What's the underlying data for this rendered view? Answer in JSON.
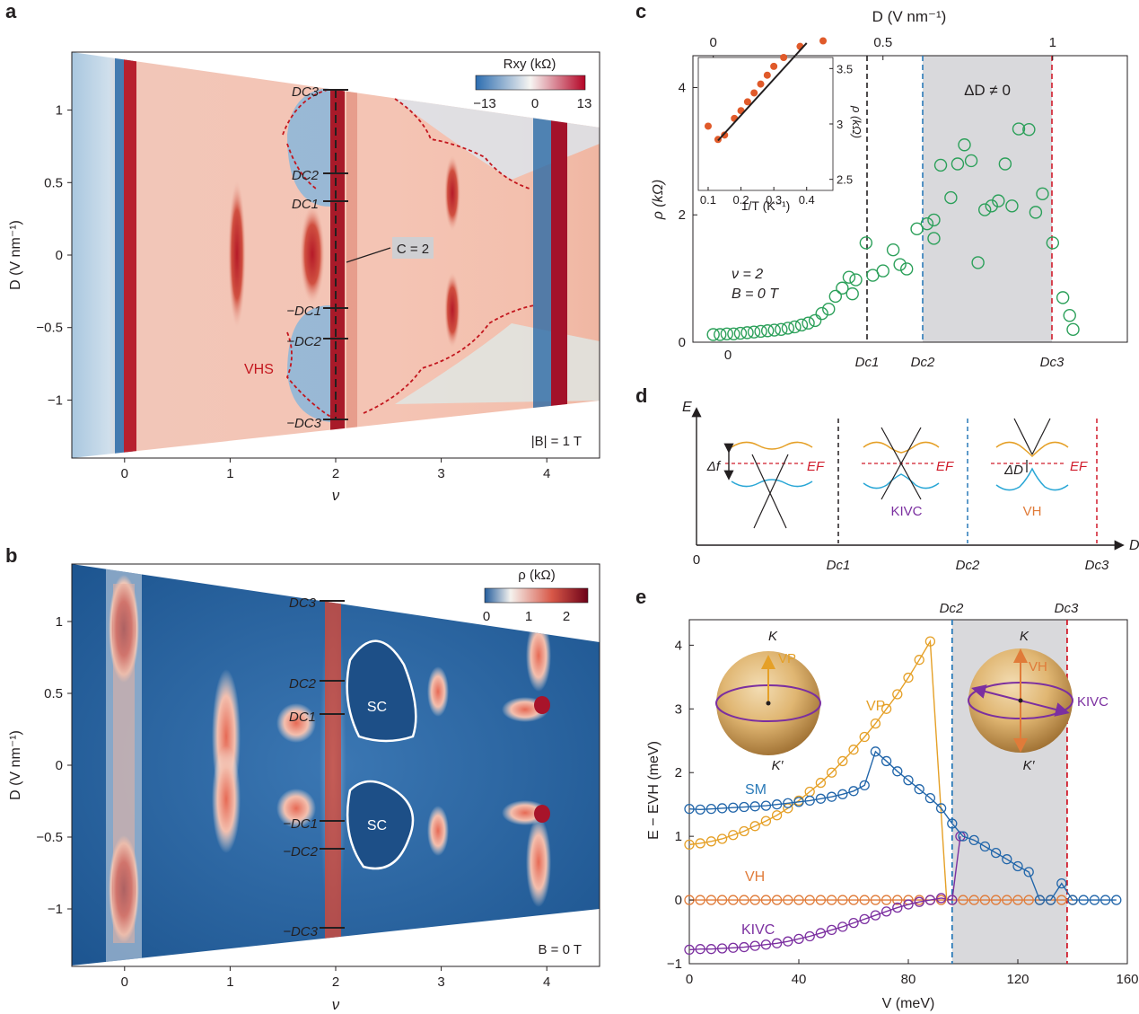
{
  "colors": {
    "red": "#b40426",
    "blue": "#2266aa",
    "orange": "#e5a027",
    "green": "#2ca05a",
    "purple": "#7b2fa0",
    "vh": "#e07b39",
    "cyan": "#2aa7d6",
    "gray": "#d9d9dc",
    "black": "#231f20"
  },
  "panels": {
    "a": "a",
    "b": "b",
    "c": "c",
    "d": "d",
    "e": "e"
  },
  "chart_data": [
    {
      "id": "a",
      "type": "heatmap",
      "xlabel": "ν",
      "ylabel": "D (V nm⁻¹)",
      "xticks": [
        "0",
        "1",
        "2",
        "3",
        "4"
      ],
      "yticks": [
        "1",
        "0.5",
        "0",
        "−0.5",
        "−1"
      ],
      "xlim": [
        -0.5,
        4.5
      ],
      "ylim": [
        -1.4,
        1.4
      ],
      "colorbar": {
        "label": "Rxy (kΩ)",
        "ticks": [
          "−13",
          "0",
          "13"
        ]
      },
      "labels": {
        "dc3": "DC3",
        "dc2": "DC2",
        "dc1": "DC1",
        "mdc1": "−DC1",
        "mdc2": "−DC2",
        "mdc3": "−DC3",
        "vhs": "VHS",
        "c2": "C = 2",
        "field": "|B| = 1 T"
      }
    },
    {
      "id": "b",
      "type": "heatmap",
      "xlabel": "ν",
      "ylabel": "D (V nm⁻¹)",
      "xticks": [
        "0",
        "1",
        "2",
        "3",
        "4"
      ],
      "yticks": [
        "1",
        "0.5",
        "0",
        "−0.5",
        "−1"
      ],
      "xlim": [
        -0.5,
        4.5
      ],
      "ylim": [
        -1.4,
        1.4
      ],
      "colorbar": {
        "label": "ρ (kΩ)",
        "ticks": [
          "0",
          "1",
          "2"
        ]
      },
      "labels": {
        "dc3": "DC3",
        "dc2": "DC2",
        "dc1": "DC1",
        "mdc1": "−DC1",
        "mdc2": "−DC2",
        "mdc3": "−DC3",
        "sc": "SC",
        "field": "B = 0 T"
      }
    },
    {
      "id": "c",
      "type": "scatter",
      "ylabel": "ρ (kΩ)",
      "xlabel_top": "D (V nm⁻¹)",
      "yticks": [
        "0",
        "2",
        "4"
      ],
      "xticks_top": [
        "0",
        "0.5",
        "1"
      ],
      "xticks_bottom": [
        "0",
        "Dc1",
        "Dc2",
        "Dc3"
      ],
      "ylim": [
        0,
        4.5
      ],
      "annotations": {
        "nu": "ν = 2",
        "field": "B = 0 T",
        "gap": "ΔD ≠ 0"
      },
      "series": [
        {
          "values": [
            [
              0,
              0.12
            ],
            [
              0.02,
              0.12
            ],
            [
              0.04,
              0.13
            ],
            [
              0.06,
              0.13
            ],
            [
              0.08,
              0.14
            ],
            [
              0.1,
              0.15
            ],
            [
              0.12,
              0.16
            ],
            [
              0.14,
              0.17
            ],
            [
              0.16,
              0.18
            ],
            [
              0.18,
              0.19
            ],
            [
              0.2,
              0.2
            ],
            [
              0.22,
              0.22
            ],
            [
              0.24,
              0.24
            ],
            [
              0.26,
              0.27
            ],
            [
              0.28,
              0.3
            ],
            [
              0.3,
              0.34
            ],
            [
              0.32,
              0.45
            ],
            [
              0.34,
              0.52
            ],
            [
              0.36,
              0.72
            ],
            [
              0.38,
              0.85
            ],
            [
              0.4,
              1.02
            ],
            [
              0.41,
              0.76
            ],
            [
              0.42,
              0.98
            ],
            [
              0.45,
              1.56
            ],
            [
              0.47,
              1.05
            ],
            [
              0.5,
              1.12
            ],
            [
              0.53,
              1.45
            ],
            [
              0.55,
              1.22
            ],
            [
              0.57,
              1.15
            ],
            [
              0.6,
              1.78
            ],
            [
              0.63,
              1.86
            ],
            [
              0.65,
              1.92
            ],
            [
              0.65,
              1.63
            ],
            [
              0.67,
              2.78
            ],
            [
              0.7,
              2.27
            ],
            [
              0.72,
              2.8
            ],
            [
              0.74,
              3.1
            ],
            [
              0.76,
              2.85
            ],
            [
              0.78,
              1.25
            ],
            [
              0.8,
              2.08
            ],
            [
              0.82,
              2.14
            ],
            [
              0.84,
              2.22
            ],
            [
              0.86,
              2.8
            ],
            [
              0.88,
              2.14
            ],
            [
              0.9,
              3.35
            ],
            [
              0.93,
              3.34
            ],
            [
              0.95,
              2.04
            ],
            [
              0.97,
              2.33
            ],
            [
              1.0,
              1.56
            ],
            [
              1.03,
              0.7
            ],
            [
              1.05,
              0.42
            ],
            [
              1.06,
              0.2
            ]
          ]
        }
      ],
      "inset": {
        "xlabel": "1/T (K⁻¹)",
        "ylabel": "ρ (kΩ)",
        "xticks": [
          "0.1",
          "0.2",
          "0.3",
          "0.4"
        ],
        "yticks": [
          "2.5",
          "3",
          "3.5"
        ],
        "points": [
          [
            0.1,
            2.98
          ],
          [
            0.13,
            2.86
          ],
          [
            0.15,
            2.9
          ],
          [
            0.18,
            3.05
          ],
          [
            0.2,
            3.12
          ],
          [
            0.22,
            3.2
          ],
          [
            0.24,
            3.28
          ],
          [
            0.26,
            3.36
          ],
          [
            0.28,
            3.44
          ],
          [
            0.3,
            3.52
          ],
          [
            0.33,
            3.6
          ],
          [
            0.38,
            3.7
          ],
          [
            0.45,
            3.75
          ]
        ],
        "fit": [
          [
            0.13,
            2.85
          ],
          [
            0.4,
            3.73
          ]
        ]
      }
    },
    {
      "id": "d",
      "type": "schematic",
      "labels": {
        "E": "E",
        "D": "D",
        "origin": "0",
        "dc1": "Dc1",
        "dc2": "Dc2",
        "dc3": "Dc3",
        "ef1": "EF",
        "ef2": "EF",
        "ef3": "EF",
        "gap_f": "Δf",
        "gap_d": "ΔD",
        "kivc": "KIVC",
        "vh": "VH"
      }
    },
    {
      "id": "e",
      "type": "line",
      "xlabel": "V (meV)",
      "ylabel": "E − EVH (meV)",
      "xticks": [
        "0",
        "40",
        "80",
        "120",
        "160"
      ],
      "yticks": [
        "−1",
        "0",
        "1",
        "2",
        "3",
        "4"
      ],
      "xlim": [
        0,
        160
      ],
      "ylim": [
        -1,
        4.4
      ],
      "top_labels": {
        "dc2": "Dc2",
        "dc3": "Dc3"
      },
      "sphere_labels": {
        "k1": "K",
        "kp1": "K′",
        "vp": "VP",
        "k2": "K",
        "kp2": "K′",
        "vh": "VH",
        "kivc": "KIVC"
      },
      "series": [
        {
          "name": "SM",
          "values": [
            [
              0,
              1.43
            ],
            [
              4,
              1.42
            ],
            [
              8,
              1.43
            ],
            [
              12,
              1.44
            ],
            [
              16,
              1.45
            ],
            [
              20,
              1.46
            ],
            [
              24,
              1.47
            ],
            [
              28,
              1.48
            ],
            [
              32,
              1.5
            ],
            [
              36,
              1.52
            ],
            [
              40,
              1.54
            ],
            [
              44,
              1.56
            ],
            [
              48,
              1.59
            ],
            [
              52,
              1.62
            ],
            [
              56,
              1.66
            ],
            [
              60,
              1.71
            ],
            [
              64,
              1.8
            ],
            [
              68,
              2.33
            ],
            [
              72,
              2.18
            ],
            [
              76,
              2.02
            ],
            [
              80,
              1.88
            ],
            [
              84,
              1.74
            ],
            [
              88,
              1.6
            ],
            [
              92,
              1.44
            ],
            [
              96,
              1.2
            ],
            [
              100,
              1.0
            ],
            [
              104,
              0.94
            ],
            [
              108,
              0.84
            ],
            [
              112,
              0.74
            ],
            [
              116,
              0.64
            ],
            [
              120,
              0.53
            ],
            [
              124,
              0.44
            ],
            [
              128,
              0.0
            ],
            [
              132,
              0.0
            ],
            [
              136,
              0.26
            ],
            [
              140,
              0.0
            ],
            [
              144,
              0.0
            ],
            [
              148,
              0.0
            ],
            [
              152,
              0.0
            ],
            [
              156,
              0.0
            ]
          ]
        },
        {
          "name": "VP",
          "values": [
            [
              0,
              0.87
            ],
            [
              4,
              0.89
            ],
            [
              8,
              0.92
            ],
            [
              12,
              0.96
            ],
            [
              16,
              1.02
            ],
            [
              20,
              1.08
            ],
            [
              24,
              1.16
            ],
            [
              28,
              1.24
            ],
            [
              32,
              1.33
            ],
            [
              36,
              1.44
            ],
            [
              40,
              1.56
            ],
            [
              44,
              1.7
            ],
            [
              48,
              1.84
            ],
            [
              52,
              2.0
            ],
            [
              56,
              2.18
            ],
            [
              60,
              2.36
            ],
            [
              64,
              2.56
            ],
            [
              68,
              2.77
            ],
            [
              72,
              3.0
            ],
            [
              76,
              3.23
            ],
            [
              80,
              3.49
            ],
            [
              84,
              3.77
            ],
            [
              88,
              4.06
            ],
            [
              94,
              0.0
            ]
          ]
        },
        {
          "name": "VH",
          "values": [
            [
              0,
              0
            ],
            [
              4,
              0
            ],
            [
              8,
              0
            ],
            [
              12,
              0
            ],
            [
              16,
              0
            ],
            [
              20,
              0
            ],
            [
              24,
              0
            ],
            [
              28,
              0
            ],
            [
              32,
              0
            ],
            [
              36,
              0
            ],
            [
              40,
              0
            ],
            [
              44,
              0
            ],
            [
              48,
              0
            ],
            [
              52,
              0
            ],
            [
              56,
              0
            ],
            [
              60,
              0
            ],
            [
              64,
              0
            ],
            [
              68,
              0
            ],
            [
              72,
              0
            ],
            [
              76,
              0
            ],
            [
              80,
              0
            ],
            [
              84,
              0
            ],
            [
              88,
              0
            ],
            [
              92,
              0
            ],
            [
              96,
              0
            ],
            [
              100,
              0
            ],
            [
              104,
              0
            ],
            [
              108,
              0
            ],
            [
              112,
              0
            ],
            [
              116,
              0
            ],
            [
              120,
              0
            ],
            [
              124,
              0
            ],
            [
              128,
              0
            ],
            [
              132,
              0
            ],
            [
              136,
              0
            ],
            [
              140,
              0
            ]
          ]
        },
        {
          "name": "KIVC",
          "values": [
            [
              0,
              -0.78
            ],
            [
              4,
              -0.77
            ],
            [
              8,
              -0.77
            ],
            [
              12,
              -0.76
            ],
            [
              16,
              -0.75
            ],
            [
              20,
              -0.74
            ],
            [
              24,
              -0.72
            ],
            [
              28,
              -0.7
            ],
            [
              32,
              -0.68
            ],
            [
              36,
              -0.65
            ],
            [
              40,
              -0.61
            ],
            [
              44,
              -0.57
            ],
            [
              48,
              -0.52
            ],
            [
              52,
              -0.47
            ],
            [
              56,
              -0.42
            ],
            [
              60,
              -0.36
            ],
            [
              64,
              -0.3
            ],
            [
              68,
              -0.24
            ],
            [
              72,
              -0.18
            ],
            [
              76,
              -0.12
            ],
            [
              80,
              -0.07
            ],
            [
              84,
              -0.03
            ],
            [
              88,
              0.0
            ],
            [
              92,
              0.03
            ],
            [
              96,
              0.0
            ],
            [
              99,
              1.0
            ]
          ]
        }
      ]
    }
  ]
}
